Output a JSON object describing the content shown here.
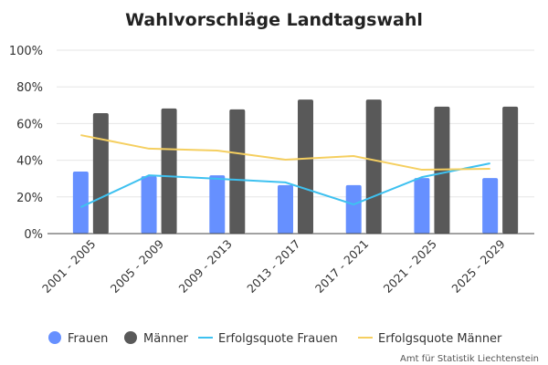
{
  "chart_data": {
    "type": "bar",
    "title": "Wahlvorschläge Landtagswahl",
    "categories": [
      "2001 - 2005",
      "2005 - 2009",
      "2009 - 2013",
      "2013 - 2017",
      "2017 - 2021",
      "2021 - 2025",
      "2025 - 2029"
    ],
    "ylim": [
      0,
      100
    ],
    "yticks": [
      "0%",
      "20%",
      "40%",
      "60%",
      "80%",
      "100%"
    ],
    "ytick_values": [
      0,
      20,
      40,
      60,
      80,
      100
    ],
    "grid": true,
    "legend_position": "bottom",
    "series": [
      {
        "name": "Frauen",
        "type": "bar",
        "color": "#6690ff",
        "values": [
          33.8,
          31.3,
          31.8,
          26.4,
          26.4,
          30.3,
          30.3
        ]
      },
      {
        "name": "Männer",
        "type": "bar",
        "color": "#595959",
        "values": [
          65.7,
          68.2,
          67.7,
          73.1,
          73.1,
          69.2,
          69.2
        ]
      },
      {
        "name": "Erfolgsquote Frauen",
        "type": "line",
        "color": "#3ec1f0",
        "values": [
          14.4,
          31.8,
          29.9,
          27.9,
          15.9,
          30.8,
          38.3
        ]
      },
      {
        "name": "Erfolgsquote Männer",
        "type": "line",
        "color": "#f5cf60",
        "values": [
          53.7,
          46.3,
          45.3,
          40.3,
          42.3,
          34.8,
          35.3
        ]
      }
    ],
    "source": "Amt für Statistik Liechtenstein"
  }
}
